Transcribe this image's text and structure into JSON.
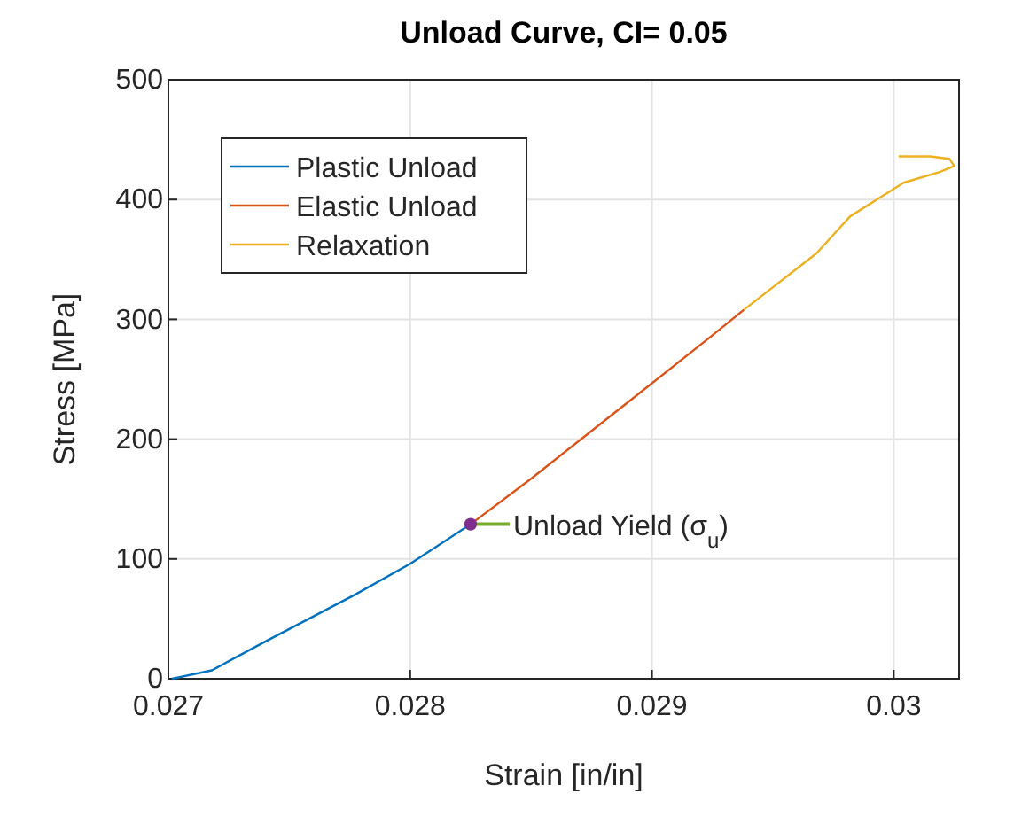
{
  "chart_data": {
    "type": "line",
    "title": "Unload Curve, CI= 0.05",
    "xlabel": "Strain [in/in]",
    "ylabel": "Stress [MPa]",
    "xlim": [
      0.027,
      0.03027
    ],
    "xticks": [
      0.027,
      0.028,
      0.029,
      0.03
    ],
    "ylim": [
      0,
      500
    ],
    "yticks": [
      0,
      100,
      200,
      300,
      400,
      500
    ],
    "grid": true,
    "legend": "top left",
    "line_style": "solid",
    "series": [
      {
        "name": "Plastic Unload",
        "color": "#0072bd",
        "x": [
          0.027015,
          0.02718,
          0.0274,
          0.02777,
          0.028,
          0.02825
        ],
        "values": [
          0,
          7,
          31,
          70,
          96,
          129
        ]
      },
      {
        "name": "Elastic Unload",
        "color": "#d95319",
        "x": [
          0.02825,
          0.0285,
          0.02887,
          0.02924,
          0.02938
        ],
        "values": [
          129,
          167,
          226,
          285,
          308
        ]
      },
      {
        "name": "Relaxation",
        "color": "#edb120",
        "x": [
          0.02938,
          0.02968,
          0.02982,
          0.03004,
          0.03019,
          0.03025,
          0.03023,
          0.03015,
          0.03002
        ],
        "values": [
          308,
          355,
          386,
          414,
          423,
          428,
          434,
          436,
          436
        ]
      },
      {
        "type": "scatter",
        "marker": "circle",
        "color": "#7e2f8e",
        "x": [
          0.02825
        ],
        "values": [
          129
        ]
      }
    ],
    "annotations": [
      {
        "text": "Unload Yield (σ$_{u}$)",
        "x": 0.02825,
        "y": 129
      }
    ]
  }
}
